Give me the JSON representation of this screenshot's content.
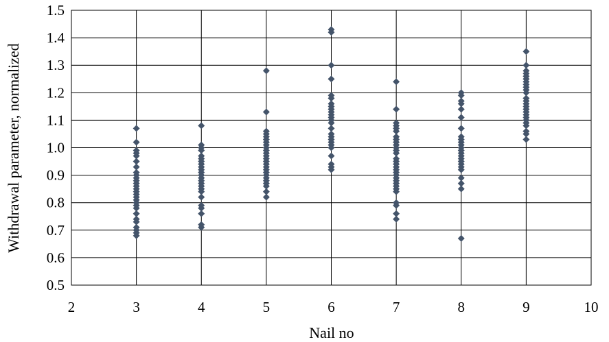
{
  "chart_data": {
    "type": "scatter",
    "title": "",
    "xlabel": "Nail no",
    "ylabel": "Withdrawal parameter, normalized",
    "xlim": [
      2,
      10
    ],
    "ylim": [
      0.5,
      1.5
    ],
    "x_ticks": [
      "2",
      "3",
      "4",
      "5",
      "6",
      "7",
      "8",
      "9",
      "10"
    ],
    "y_ticks": [
      "0.5",
      "0.6",
      "0.7",
      "0.8",
      "0.9",
      "1.0",
      "1.1",
      "1.2",
      "1.3",
      "1.4",
      "1.5"
    ],
    "grid": true,
    "legend": "none",
    "marker_color": "#44546A",
    "marker": "diamond",
    "series": [
      {
        "x": [
          3,
          3,
          3,
          3,
          3,
          3,
          3,
          3,
          3,
          3,
          3,
          3,
          3,
          3,
          3,
          3,
          3,
          3,
          3,
          3,
          3,
          3,
          3,
          3,
          3,
          3,
          3,
          3,
          4,
          4,
          4,
          4,
          4,
          4,
          4,
          4,
          4,
          4,
          4,
          4,
          4,
          4,
          4,
          4,
          4,
          4,
          4,
          4,
          4,
          4,
          4,
          4,
          5,
          5,
          5,
          5,
          5,
          5,
          5,
          5,
          5,
          5,
          5,
          5,
          5,
          5,
          5,
          5,
          5,
          5,
          5,
          5,
          5,
          5,
          5,
          5,
          5,
          6,
          6,
          6,
          6,
          6,
          6,
          6,
          6,
          6,
          6,
          6,
          6,
          6,
          6,
          6,
          6,
          6,
          6,
          6,
          6,
          6,
          6,
          6,
          6,
          6,
          7,
          7,
          7,
          7,
          7,
          7,
          7,
          7,
          7,
          7,
          7,
          7,
          7,
          7,
          7,
          7,
          7,
          7,
          7,
          7,
          7,
          7,
          7,
          7,
          7,
          7,
          7,
          7,
          7,
          7,
          8,
          8,
          8,
          8,
          8,
          8,
          8,
          8,
          8,
          8,
          8,
          8,
          8,
          8,
          8,
          8,
          8,
          8,
          8,
          8,
          8,
          8,
          8,
          8,
          9,
          9,
          9,
          9,
          9,
          9,
          9,
          9,
          9,
          9,
          9,
          9,
          9,
          9,
          9,
          9,
          9,
          9,
          9,
          9,
          9,
          9,
          9,
          9,
          9
        ],
        "y": [
          1.07,
          1.02,
          0.99,
          0.98,
          0.97,
          0.95,
          0.93,
          0.91,
          0.9,
          0.89,
          0.88,
          0.87,
          0.86,
          0.85,
          0.84,
          0.83,
          0.82,
          0.81,
          0.8,
          0.79,
          0.78,
          0.76,
          0.74,
          0.73,
          0.71,
          0.7,
          0.69,
          0.68,
          1.08,
          1.01,
          1.0,
          0.99,
          0.97,
          0.96,
          0.95,
          0.94,
          0.93,
          0.92,
          0.91,
          0.9,
          0.89,
          0.88,
          0.87,
          0.86,
          0.85,
          0.84,
          0.82,
          0.79,
          0.78,
          0.76,
          0.72,
          0.71,
          1.28,
          1.13,
          1.06,
          1.05,
          1.04,
          1.03,
          1.02,
          1.01,
          1.0,
          0.99,
          0.98,
          0.97,
          0.96,
          0.95,
          0.94,
          0.93,
          0.92,
          0.91,
          0.9,
          0.89,
          0.88,
          0.87,
          0.86,
          0.84,
          0.82,
          1.43,
          1.42,
          1.3,
          1.25,
          1.19,
          1.18,
          1.16,
          1.15,
          1.14,
          1.13,
          1.12,
          1.11,
          1.1,
          1.09,
          1.07,
          1.05,
          1.04,
          1.03,
          1.02,
          1.01,
          1.0,
          0.97,
          0.94,
          0.93,
          0.92,
          1.24,
          1.14,
          1.09,
          1.08,
          1.07,
          1.06,
          1.04,
          1.03,
          1.02,
          1.01,
          1.0,
          0.99,
          0.98,
          0.96,
          0.95,
          0.94,
          0.93,
          0.92,
          0.91,
          0.9,
          0.89,
          0.88,
          0.87,
          0.86,
          0.85,
          0.84,
          0.8,
          0.79,
          0.76,
          0.74,
          1.2,
          1.19,
          1.17,
          1.16,
          1.14,
          1.11,
          1.07,
          1.04,
          1.03,
          1.02,
          1.01,
          1.0,
          0.99,
          0.98,
          0.97,
          0.96,
          0.95,
          0.94,
          0.93,
          0.92,
          0.89,
          0.87,
          0.85,
          0.67,
          1.35,
          1.3,
          1.28,
          1.27,
          1.26,
          1.25,
          1.24,
          1.23,
          1.22,
          1.21,
          1.2,
          1.18,
          1.17,
          1.16,
          1.15,
          1.14,
          1.13,
          1.12,
          1.11,
          1.1,
          1.09,
          1.08,
          1.06,
          1.05,
          1.03
        ]
      }
    ]
  }
}
